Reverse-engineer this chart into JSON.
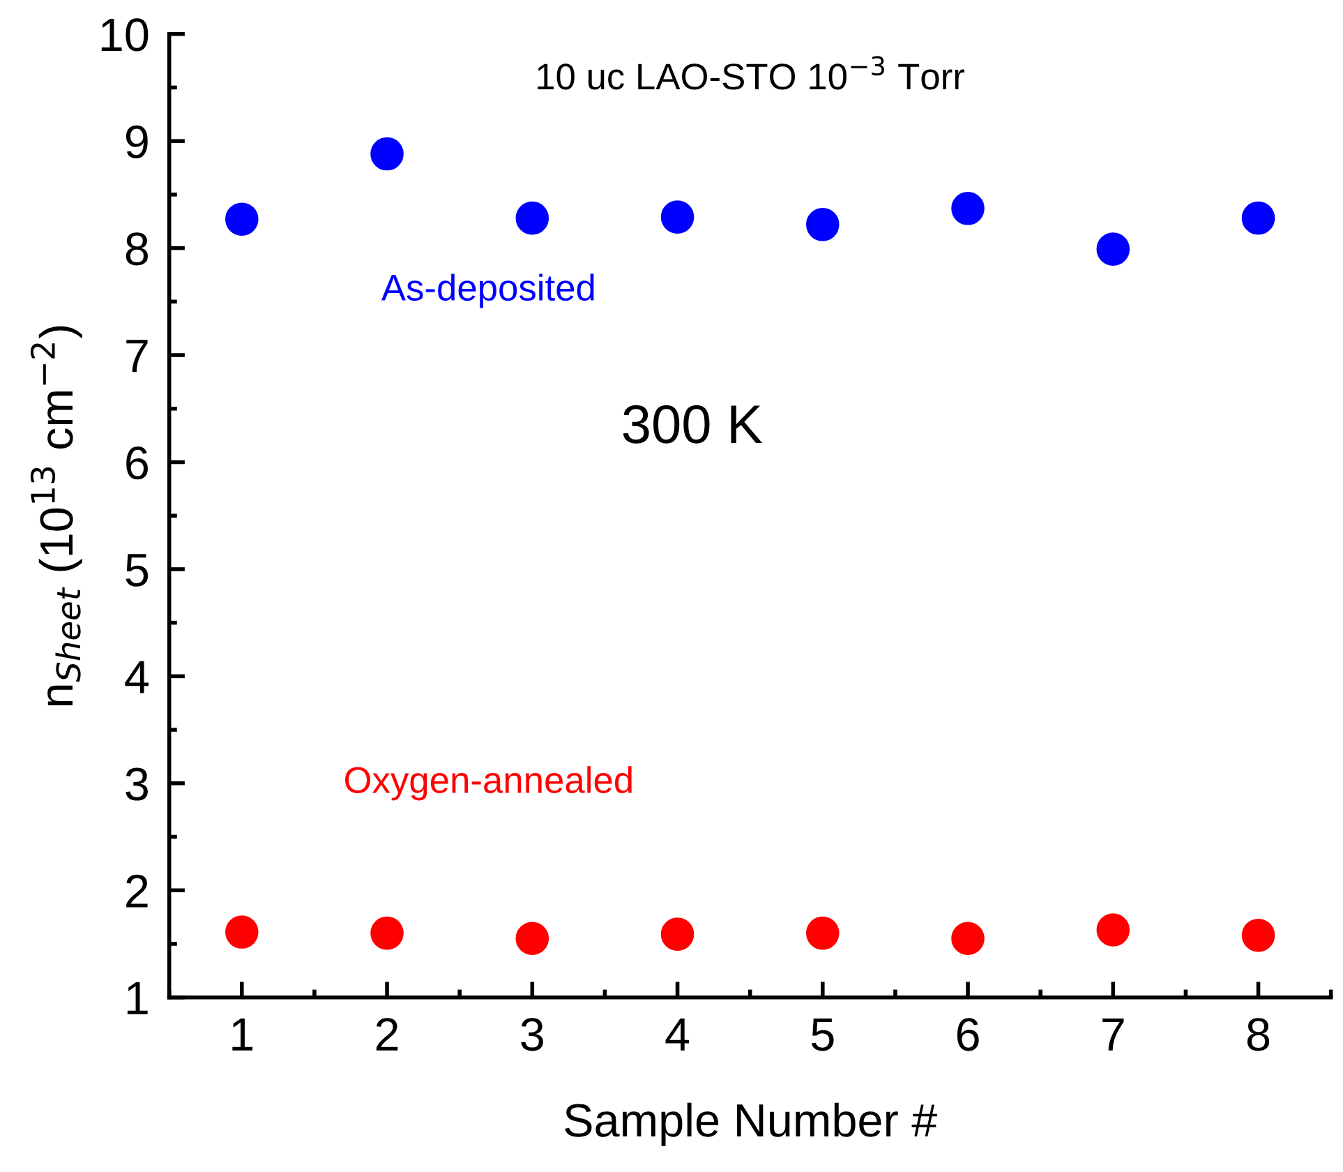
{
  "chart_data": {
    "type": "scatter",
    "title": "10 uc LAO-STO 10$^{−3}$ Torr",
    "xlabel": "Sample Number #",
    "ylabel": "n$_{Sheet}$ (10$^{13}$ cm$^{−2}$)",
    "x": [
      1,
      2,
      3,
      4,
      5,
      6,
      7,
      8
    ],
    "series": [
      {
        "name": "As-deposited",
        "color": "#0000ff",
        "values": [
          8.27,
          8.88,
          8.28,
          8.29,
          8.22,
          8.37,
          7.99,
          8.28
        ]
      },
      {
        "name": "Oxygen-annealed",
        "color": "#ff0000",
        "values": [
          1.61,
          1.6,
          1.55,
          1.59,
          1.6,
          1.55,
          1.63,
          1.58
        ]
      }
    ],
    "annotations": [
      "300 K"
    ],
    "xlim": [
      0.5,
      8.5
    ],
    "xticks": [
      1,
      2,
      3,
      4,
      5,
      6,
      7,
      8
    ],
    "ylim": [
      1,
      10
    ],
    "yticks": [
      1,
      2,
      3,
      4,
      5,
      6,
      7,
      8,
      9,
      10
    ],
    "marker": "circle",
    "grid": false,
    "legend": false
  }
}
